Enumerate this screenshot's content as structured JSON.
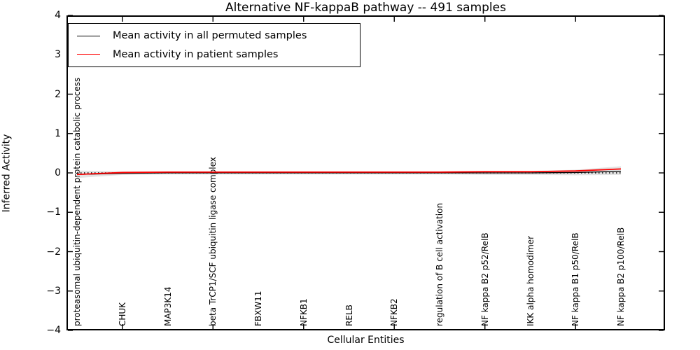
{
  "chart_data": {
    "type": "line",
    "title": "Alternative NF-kappaB pathway -- 491 samples",
    "xlabel": "Cellular Entities",
    "ylabel": "Inferred Activity",
    "ylim": [
      -4,
      4
    ],
    "y_tick_labels": [
      "4",
      "3",
      "2",
      "1",
      "0",
      "−1",
      "−2",
      "−3",
      "−4"
    ],
    "y_tick_values": [
      4,
      3,
      2,
      1,
      0,
      -1,
      -2,
      -3,
      -4
    ],
    "categories": [
      "proteasomal ubiquitin-dependent protein catabolic process",
      "CHUK",
      "MAP3K14",
      "beta TrCP1/SCF ubiquitin ligase complex",
      "FBXW11",
      "NFKB1",
      "RELB",
      "NFKB2",
      "regulation of B cell activation",
      "NF kappa B2 p52/RelB",
      "IKK alpha homodimer",
      "NF kappa B1 p50/RelB",
      "NF kappa B2 p100/RelB"
    ],
    "x_major_tick_indices": [
      1,
      3,
      5,
      7,
      9,
      11
    ],
    "grid": false,
    "zero_line": {
      "value": 0,
      "style": "dotted",
      "color": "#000000"
    },
    "legend_position": "upper left",
    "series": [
      {
        "name": "Mean activity in all permuted samples",
        "color": "#000000",
        "line_width": 1.3,
        "values": [
          -0.04,
          -0.01,
          0.0,
          0.0,
          0.0,
          0.0,
          0.0,
          0.0,
          0.0,
          0.0,
          0.0,
          0.01,
          0.04
        ]
      },
      {
        "name": "Mean activity in patient samples",
        "color": "#ff0000",
        "line_width": 1.8,
        "values": [
          -0.04,
          0.01,
          0.02,
          0.02,
          0.02,
          0.02,
          0.02,
          0.02,
          0.02,
          0.03,
          0.03,
          0.05,
          0.1
        ]
      }
    ],
    "band": {
      "name": "permuted-samples-std-band",
      "color": "#c0c0c0",
      "opacity": 0.45,
      "upper": [
        0.06,
        0.04,
        0.04,
        0.04,
        0.04,
        0.04,
        0.04,
        0.04,
        0.04,
        0.05,
        0.05,
        0.08,
        0.17
      ],
      "lower": [
        -0.13,
        -0.05,
        -0.04,
        -0.04,
        -0.04,
        -0.04,
        -0.04,
        -0.04,
        -0.04,
        -0.05,
        -0.05,
        -0.06,
        -0.05
      ]
    }
  }
}
